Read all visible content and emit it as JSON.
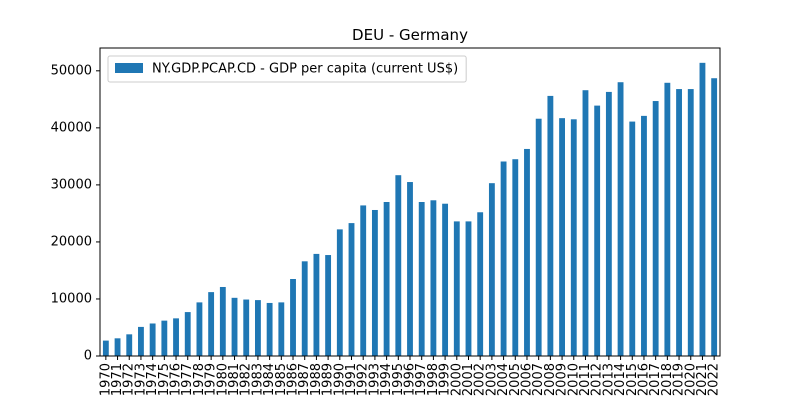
{
  "chart_data": {
    "type": "bar",
    "title": "DEU - Germany",
    "xlabel": "",
    "ylabel": "",
    "ylim": [
      0,
      54000
    ],
    "yticks": [
      0,
      10000,
      20000,
      30000,
      40000,
      50000
    ],
    "legend_position": "top-left",
    "grid": false,
    "bar_color": "#1f77b4",
    "categories": [
      "1970",
      "1971",
      "1972",
      "1973",
      "1974",
      "1975",
      "1976",
      "1977",
      "1978",
      "1979",
      "1980",
      "1981",
      "1982",
      "1983",
      "1984",
      "1985",
      "1986",
      "1987",
      "1988",
      "1989",
      "1990",
      "1991",
      "1992",
      "1993",
      "1994",
      "1995",
      "1996",
      "1997",
      "1998",
      "1999",
      "2000",
      "2001",
      "2002",
      "2003",
      "2004",
      "2005",
      "2006",
      "2007",
      "2008",
      "2009",
      "2010",
      "2011",
      "2012",
      "2013",
      "2014",
      "2015",
      "2016",
      "2017",
      "2018",
      "2019",
      "2020",
      "2021",
      "2022"
    ],
    "series": [
      {
        "name": "NY.GDP.PCAP.CD - GDP per capita (current US$)",
        "values": [
          2700,
          3100,
          3800,
          5100,
          5700,
          6200,
          6600,
          7700,
          9400,
          11200,
          12100,
          10200,
          9900,
          9800,
          9300,
          9400,
          13500,
          16600,
          17900,
          17700,
          22200,
          23300,
          26400,
          25600,
          27000,
          31700,
          30500,
          27000,
          27300,
          26700,
          23600,
          23600,
          25200,
          30300,
          34100,
          34500,
          36300,
          41600,
          45600,
          41700,
          41500,
          46600,
          43900,
          46300,
          48000,
          41100,
          42100,
          44700,
          47900,
          46800,
          46800,
          51400,
          48700
        ]
      }
    ]
  }
}
